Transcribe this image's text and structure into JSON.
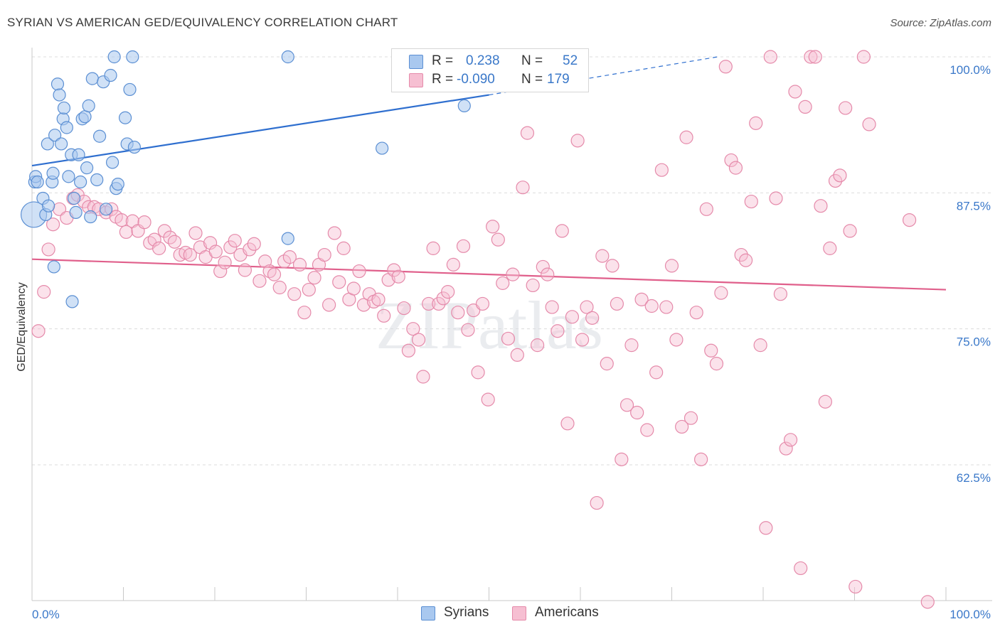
{
  "title": "SYRIAN VS AMERICAN GED/EQUIVALENCY CORRELATION CHART",
  "source": "Source: ZipAtlas.com",
  "watermark": "ZIPatlas",
  "colors": {
    "syrians_fill": "#a9c8ef",
    "syrians_stroke": "#5b8fd3",
    "syrians_line": "#2f6fcf",
    "americans_fill": "#f6bfd2",
    "americans_stroke": "#e58aaa",
    "americans_line": "#e05f8b",
    "axis_label": "#3a78c9"
  },
  "legend": {
    "syrians": {
      "r_label": "R =",
      "r_value": "0.238",
      "n_label": "N =",
      "n_value": "52"
    },
    "americans": {
      "r_label": "R =",
      "r_value": "-0.090",
      "n_label": "N =",
      "n_value": "179"
    }
  },
  "bottom_legend": {
    "syrians": "Syrians",
    "americans": "Americans"
  },
  "chart_data": {
    "type": "scatter",
    "title": "SYRIAN VS AMERICAN GED/EQUIVALENCY CORRELATION CHART",
    "xlabel": "",
    "ylabel": "GED/Equivalency",
    "xlim": [
      0,
      100
    ],
    "ylim": [
      51,
      103
    ],
    "x_tick_labels": [
      "0.0%",
      "100.0%"
    ],
    "y_ticks": [
      62.5,
      75.0,
      87.5,
      100.0
    ],
    "y_tick_labels": [
      "62.5%",
      "75.0%",
      "87.5%",
      "100.0%"
    ],
    "grid": "horizontal dashed",
    "legend_position": "top-center",
    "series": [
      {
        "name": "Syrians",
        "trend": {
          "x": [
            0,
            50
          ],
          "y": [
            90.0,
            96.5
          ],
          "dashed_extension_to": [
            75,
            100.0
          ]
        },
        "points": [
          [
            0.2,
            85.5
          ],
          [
            0.3,
            88.5
          ],
          [
            0.4,
            89.0
          ],
          [
            0.6,
            88.5
          ],
          [
            1.2,
            87.0
          ],
          [
            1.5,
            85.5
          ],
          [
            1.7,
            92.0
          ],
          [
            1.8,
            86.3
          ],
          [
            2.2,
            88.5
          ],
          [
            2.3,
            89.3
          ],
          [
            2.4,
            80.7
          ],
          [
            2.5,
            92.8
          ],
          [
            2.8,
            97.5
          ],
          [
            3.0,
            96.5
          ],
          [
            3.2,
            92.0
          ],
          [
            3.4,
            94.3
          ],
          [
            3.5,
            95.3
          ],
          [
            3.8,
            93.5
          ],
          [
            4.0,
            89.0
          ],
          [
            4.3,
            91.0
          ],
          [
            4.4,
            77.5
          ],
          [
            4.6,
            87.0
          ],
          [
            4.8,
            85.7
          ],
          [
            5.1,
            91.0
          ],
          [
            5.3,
            88.5
          ],
          [
            5.5,
            94.3
          ],
          [
            5.8,
            94.5
          ],
          [
            6.0,
            89.8
          ],
          [
            6.2,
            95.5
          ],
          [
            6.4,
            85.3
          ],
          [
            6.6,
            98.0
          ],
          [
            7.1,
            88.7
          ],
          [
            7.4,
            92.7
          ],
          [
            7.8,
            97.7
          ],
          [
            8.1,
            86.0
          ],
          [
            8.6,
            98.3
          ],
          [
            8.8,
            90.3
          ],
          [
            9.0,
            100.0
          ],
          [
            9.2,
            87.9
          ],
          [
            9.4,
            88.3
          ],
          [
            10.2,
            94.4
          ],
          [
            10.4,
            92.0
          ],
          [
            10.7,
            97.0
          ],
          [
            11.0,
            100.0
          ],
          [
            11.2,
            91.7
          ],
          [
            28.0,
            100.0
          ],
          [
            28.0,
            83.3
          ],
          [
            38.3,
            91.6
          ],
          [
            47.3,
            95.5
          ]
        ],
        "sizes": [
          2.2,
          1,
          1,
          1,
          1,
          1
        ]
      },
      {
        "name": "Americans",
        "trend": {
          "x": [
            0,
            100
          ],
          "y": [
            81.4,
            78.6
          ]
        },
        "points": [
          [
            0.7,
            74.8
          ],
          [
            1.3,
            78.4
          ],
          [
            1.8,
            82.3
          ],
          [
            2.3,
            84.6
          ],
          [
            3.0,
            86.0
          ],
          [
            3.8,
            85.2
          ],
          [
            4.5,
            87.0
          ],
          [
            5.0,
            87.3
          ],
          [
            5.7,
            86.7
          ],
          [
            6.2,
            86.2
          ],
          [
            6.8,
            86.2
          ],
          [
            7.3,
            86.0
          ],
          [
            8.1,
            85.7
          ],
          [
            8.7,
            86.0
          ],
          [
            9.2,
            85.3
          ],
          [
            9.8,
            85.0
          ],
          [
            10.3,
            83.9
          ],
          [
            11.0,
            84.9
          ],
          [
            11.6,
            84.0
          ],
          [
            12.3,
            84.8
          ],
          [
            12.9,
            82.9
          ],
          [
            13.4,
            83.2
          ],
          [
            13.9,
            82.4
          ],
          [
            14.5,
            84.0
          ],
          [
            15.1,
            83.4
          ],
          [
            15.6,
            83.0
          ],
          [
            16.2,
            81.8
          ],
          [
            16.8,
            82.0
          ],
          [
            17.3,
            81.8
          ],
          [
            17.9,
            83.8
          ],
          [
            18.4,
            82.5
          ],
          [
            19.0,
            81.6
          ],
          [
            19.5,
            82.9
          ],
          [
            20.1,
            82.1
          ],
          [
            20.6,
            80.3
          ],
          [
            21.1,
            81.1
          ],
          [
            21.7,
            82.5
          ],
          [
            22.2,
            83.1
          ],
          [
            22.8,
            81.8
          ],
          [
            23.3,
            80.4
          ],
          [
            23.8,
            82.3
          ],
          [
            24.3,
            82.8
          ],
          [
            24.9,
            79.4
          ],
          [
            25.5,
            81.2
          ],
          [
            26.0,
            80.3
          ],
          [
            26.5,
            80.0
          ],
          [
            27.1,
            78.8
          ],
          [
            27.6,
            81.2
          ],
          [
            28.2,
            81.6
          ],
          [
            28.7,
            78.2
          ],
          [
            29.3,
            80.9
          ],
          [
            29.8,
            76.5
          ],
          [
            30.3,
            78.6
          ],
          [
            30.9,
            79.7
          ],
          [
            31.4,
            80.9
          ],
          [
            32.0,
            81.8
          ],
          [
            32.5,
            77.2
          ],
          [
            33.1,
            83.8
          ],
          [
            33.6,
            79.3
          ],
          [
            34.1,
            82.4
          ],
          [
            34.7,
            77.7
          ],
          [
            35.2,
            78.7
          ],
          [
            35.8,
            80.3
          ],
          [
            36.3,
            77.2
          ],
          [
            36.9,
            78.2
          ],
          [
            37.4,
            77.5
          ],
          [
            37.9,
            77.7
          ],
          [
            38.5,
            76.2
          ],
          [
            39.0,
            79.5
          ],
          [
            39.6,
            80.4
          ],
          [
            40.1,
            79.8
          ],
          [
            40.7,
            76.9
          ],
          [
            41.2,
            73.0
          ],
          [
            41.7,
            75.0
          ],
          [
            42.3,
            74.0
          ],
          [
            42.8,
            70.6
          ],
          [
            43.4,
            77.3
          ],
          [
            43.9,
            82.4
          ],
          [
            44.5,
            77.3
          ],
          [
            45.0,
            77.8
          ],
          [
            45.5,
            78.4
          ],
          [
            46.1,
            80.9
          ],
          [
            46.6,
            76.5
          ],
          [
            47.2,
            82.6
          ],
          [
            47.7,
            74.9
          ],
          [
            48.3,
            76.7
          ],
          [
            48.8,
            71.0
          ],
          [
            49.3,
            77.3
          ],
          [
            49.9,
            68.5
          ],
          [
            50.4,
            84.4
          ],
          [
            51.0,
            83.2
          ],
          [
            51.5,
            79.2
          ],
          [
            52.1,
            74.1
          ],
          [
            52.6,
            80.0
          ],
          [
            53.1,
            72.6
          ],
          [
            53.7,
            88.0
          ],
          [
            54.2,
            93.0
          ],
          [
            54.8,
            79.0
          ],
          [
            55.3,
            73.5
          ],
          [
            55.9,
            80.7
          ],
          [
            56.4,
            80.0
          ],
          [
            56.9,
            77.0
          ],
          [
            57.5,
            74.8
          ],
          [
            58.0,
            84.0
          ],
          [
            58.6,
            66.3
          ],
          [
            59.1,
            76.1
          ],
          [
            59.7,
            92.3
          ],
          [
            60.2,
            74.0
          ],
          [
            60.7,
            77.0
          ],
          [
            61.3,
            76.0
          ],
          [
            61.8,
            59.0
          ],
          [
            62.4,
            81.7
          ],
          [
            62.9,
            71.8
          ],
          [
            63.5,
            80.8
          ],
          [
            64.0,
            77.3
          ],
          [
            64.5,
            63.0
          ],
          [
            65.1,
            68.0
          ],
          [
            65.6,
            73.5
          ],
          [
            66.2,
            67.3
          ],
          [
            66.7,
            77.7
          ],
          [
            67.3,
            65.7
          ],
          [
            67.8,
            77.1
          ],
          [
            68.3,
            71.0
          ],
          [
            68.9,
            89.6
          ],
          [
            69.4,
            77.0
          ],
          [
            70.0,
            80.8
          ],
          [
            70.5,
            74.0
          ],
          [
            71.1,
            66.0
          ],
          [
            71.6,
            92.6
          ],
          [
            72.1,
            66.8
          ],
          [
            72.7,
            76.5
          ],
          [
            73.2,
            63.0
          ],
          [
            73.8,
            86.0
          ],
          [
            74.3,
            73.0
          ],
          [
            74.9,
            71.8
          ],
          [
            75.4,
            78.3
          ],
          [
            75.9,
            99.1
          ],
          [
            76.5,
            90.5
          ],
          [
            77.0,
            89.8
          ],
          [
            77.6,
            81.8
          ],
          [
            78.1,
            81.3
          ],
          [
            78.7,
            86.7
          ],
          [
            79.2,
            93.9
          ],
          [
            79.7,
            73.5
          ],
          [
            80.3,
            56.7
          ],
          [
            80.8,
            100.0
          ],
          [
            81.4,
            87.0
          ],
          [
            81.9,
            78.2
          ],
          [
            82.5,
            64.0
          ],
          [
            83.0,
            64.8
          ],
          [
            83.5,
            96.8
          ],
          [
            84.1,
            53.0
          ],
          [
            84.6,
            95.4
          ],
          [
            85.2,
            100.0
          ],
          [
            85.7,
            100.0
          ],
          [
            86.3,
            86.3
          ],
          [
            86.8,
            68.3
          ],
          [
            87.3,
            82.4
          ],
          [
            87.9,
            88.6
          ],
          [
            88.4,
            89.1
          ],
          [
            89.0,
            95.3
          ],
          [
            89.5,
            84.0
          ],
          [
            90.1,
            51.3
          ],
          [
            91.0,
            100.0
          ],
          [
            91.6,
            93.8
          ],
          [
            96.0,
            85.0
          ],
          [
            98.0,
            49.9
          ]
        ]
      }
    ]
  }
}
